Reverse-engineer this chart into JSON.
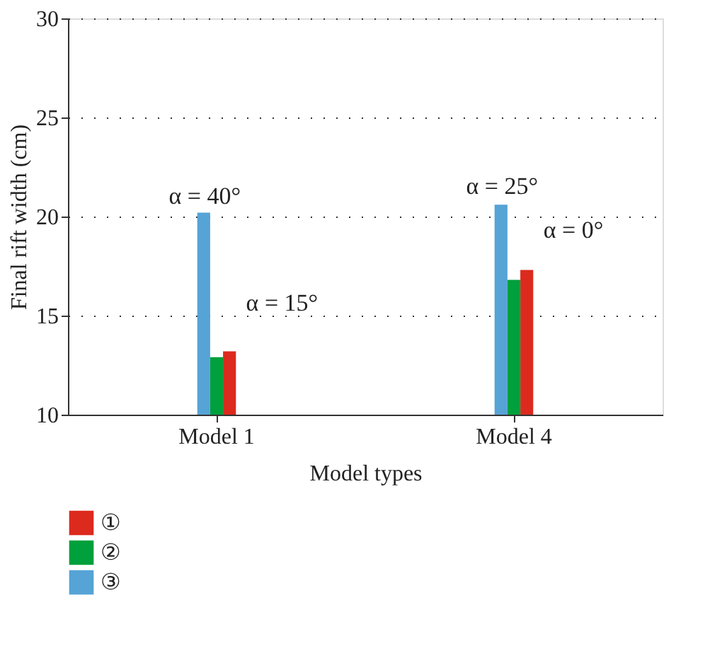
{
  "chart_data": {
    "type": "bar",
    "xlabel": "Model types",
    "ylabel": "Final rift width (cm)",
    "categories": [
      "Model 1",
      "Model 4"
    ],
    "series": [
      {
        "name": "①",
        "color": "#dc2a1e",
        "values": [
          13.2,
          17.3
        ]
      },
      {
        "name": "②",
        "color": "#00a03c",
        "values": [
          12.9,
          16.8
        ]
      },
      {
        "name": "③",
        "color": "#56a3d6",
        "values": [
          20.2,
          20.6
        ]
      }
    ],
    "ylim": [
      10,
      30
    ],
    "yticks": [
      10,
      15,
      20,
      25,
      30
    ],
    "grid": "y",
    "legend": "bottom left",
    "annotations": [
      "α = 40°",
      "α = 15°",
      "α = 25°",
      "α = 0°"
    ]
  }
}
